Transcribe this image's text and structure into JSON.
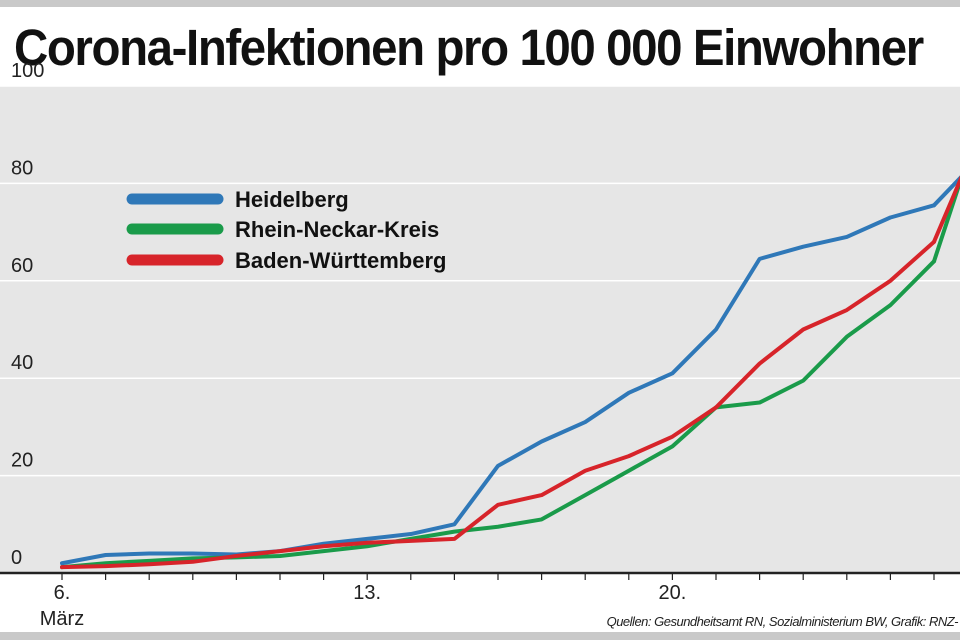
{
  "title": "Corona-Infektionen pro 100 000 Einwohner",
  "source": "Quellen: Gesundheitsamt RN, Sozialministerium BW, Grafik: RNZ-",
  "colors": {
    "background_band": "#e6e6e6",
    "gridline": "#ffffff",
    "axis": "#222222",
    "heidelberg": "#2f78b8",
    "rhein_neckar": "#1a9b4a",
    "baden_wuerttemberg": "#d7242a"
  },
  "chart_data": {
    "type": "line",
    "title": "Corona-Infektionen pro 100 000 Einwohner",
    "xlabel": "",
    "ylabel": "",
    "ylim": [
      0,
      100
    ],
    "yticks": [
      0,
      20,
      40,
      60,
      80,
      100
    ],
    "xticks": [
      {
        "day": 0,
        "label": "6."
      },
      {
        "day": 7,
        "label": "13."
      },
      {
        "day": 14,
        "label": "20."
      }
    ],
    "x_sublabel": "März",
    "grid": true,
    "legend_position": "top-left",
    "x": [
      0,
      1,
      2,
      3,
      4,
      5,
      6,
      7,
      8,
      9,
      10,
      11,
      12,
      13,
      14,
      15,
      16,
      17,
      18,
      19,
      20
    ],
    "series": [
      {
        "name": "Heidelberg",
        "color": "#2f78b8",
        "values": [
          2,
          3.7,
          4,
          4,
          3.8,
          4.5,
          6,
          7,
          8,
          10,
          22,
          27,
          31,
          37,
          41,
          50,
          64.5,
          67,
          69,
          73,
          75.5
        ]
      },
      {
        "name": "Rhein-Neckar-Kreis",
        "color": "#1a9b4a",
        "values": [
          1.2,
          2,
          2.5,
          3,
          3.2,
          3.5,
          4.5,
          5.5,
          7,
          8.5,
          9.5,
          11,
          16,
          21,
          26,
          34,
          35,
          39.5,
          48.5,
          55,
          64
        ]
      },
      {
        "name": "Baden-Württemberg",
        "color": "#d7242a",
        "values": [
          1.2,
          1.4,
          1.8,
          2.3,
          3.5,
          4.5,
          5.5,
          6.2,
          6.6,
          7,
          14,
          16,
          21,
          24,
          28,
          34,
          43,
          50,
          54,
          60,
          68
        ]
      }
    ]
  }
}
